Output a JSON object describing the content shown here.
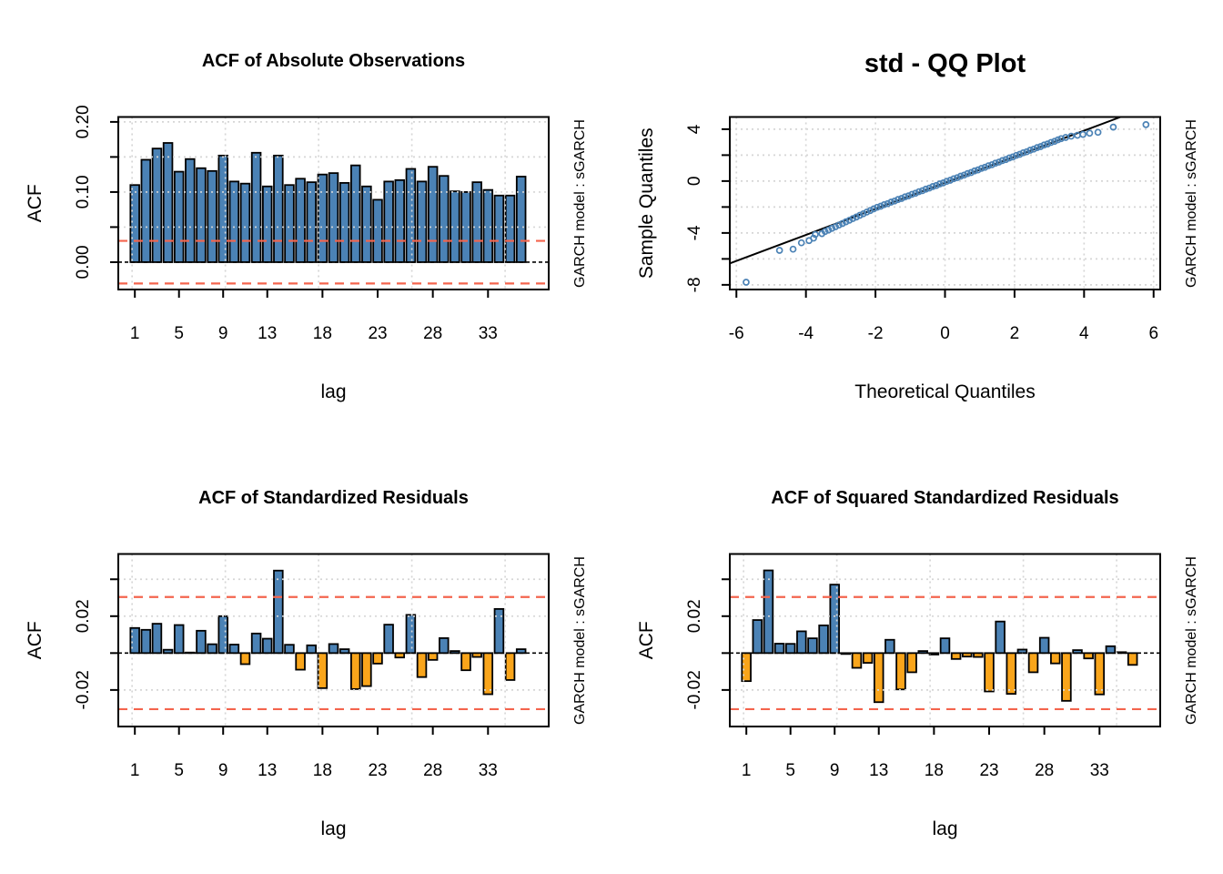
{
  "watermark": {
    "text": "GARCH model :  sGARCH",
    "color": "#C5C5C5"
  },
  "colors": {
    "background": "#FFFFFF",
    "bar_positive": "#4B82B5",
    "bar_negative": "#F9A51B",
    "bar_border": "#000000",
    "conf_line": "#F4654E",
    "grid": "#D6D6D6",
    "zero_line": "#000000",
    "qq_point": "#4B82B5",
    "qq_line": "#000000",
    "axis": "#000000"
  },
  "chart_data": [
    {
      "id": "acf-abs",
      "type": "bar",
      "panel": "top-left",
      "title": "ACF of Absolute Observations",
      "xlabel": "lag",
      "ylabel": "ACF",
      "xlim": [
        -0.5,
        38.5
      ],
      "ylim": [
        -0.039,
        0.207
      ],
      "x_ticks": [
        {
          "v": 1,
          "label": "1"
        },
        {
          "v": 5,
          "label": "5"
        },
        {
          "v": 9,
          "label": "9"
        },
        {
          "v": 13,
          "label": "13"
        },
        {
          "v": 18,
          "label": "18"
        },
        {
          "v": 23,
          "label": "23"
        },
        {
          "v": 28,
          "label": "28"
        },
        {
          "v": 33,
          "label": "33"
        }
      ],
      "y_ticks": [
        {
          "v": 0,
          "label": "0.00"
        },
        {
          "v": 0.05,
          "label": ""
        },
        {
          "v": 0.1,
          "label": "0.10"
        },
        {
          "v": 0.15,
          "label": ""
        },
        {
          "v": 0.2,
          "label": "0.20"
        }
      ],
      "y_grid": [
        0.05,
        0.1,
        0.15,
        0.2
      ],
      "x_grid": [
        0.75,
        9.2,
        17.65,
        26.1,
        34.55
      ],
      "conf_level": 0.0304,
      "grid_on": true,
      "legend": "none",
      "lags": [
        1,
        2,
        3,
        4,
        5,
        6,
        7,
        8,
        9,
        10,
        11,
        12,
        13,
        14,
        15,
        16,
        17,
        18,
        19,
        20,
        21,
        22,
        23,
        24,
        25,
        26,
        27,
        28,
        29,
        30,
        31,
        32,
        33,
        34,
        35,
        36
      ],
      "values": [
        0.11,
        0.146,
        0.162,
        0.17,
        0.129,
        0.147,
        0.134,
        0.13,
        0.152,
        0.115,
        0.112,
        0.156,
        0.108,
        0.152,
        0.11,
        0.119,
        0.114,
        0.125,
        0.127,
        0.113,
        0.138,
        0.108,
        0.089,
        0.115,
        0.117,
        0.133,
        0.115,
        0.136,
        0.123,
        0.101,
        0.1,
        0.114,
        0.103,
        0.095,
        0.095,
        0.122
      ]
    },
    {
      "id": "qq",
      "type": "scatter",
      "panel": "top-right",
      "title": "std - QQ Plot",
      "xlabel": "Theoretical Quantiles",
      "ylabel": "Sample Quantiles",
      "xlim": [
        -6.19,
        6.19
      ],
      "ylim": [
        -8.36,
        4.94
      ],
      "x_ticks": [
        {
          "v": -6,
          "label": "-6"
        },
        {
          "v": -4,
          "label": "-4"
        },
        {
          "v": -2,
          "label": "-2"
        },
        {
          "v": 0,
          "label": "0"
        },
        {
          "v": 2,
          "label": "2"
        },
        {
          "v": 4,
          "label": "4"
        },
        {
          "v": 6,
          "label": "6"
        }
      ],
      "y_ticks": [
        {
          "v": 4,
          "label": "4"
        },
        {
          "v": 2,
          "label": ""
        },
        {
          "v": 0,
          "label": "0"
        },
        {
          "v": -2,
          "label": ""
        },
        {
          "v": -4,
          "label": "-4"
        },
        {
          "v": -6,
          "label": ""
        },
        {
          "v": -8,
          "label": "-8"
        }
      ],
      "grid_on": true,
      "legend": "none",
      "ref_line": {
        "x1": -6.19,
        "y1": -6.35,
        "x2": 5.05,
        "y2": 4.94
      },
      "points": [
        [
          -5.72,
          -7.8
        ],
        [
          -4.76,
          -5.34
        ],
        [
          -4.37,
          -5.25
        ],
        [
          -4.13,
          -4.76
        ],
        [
          -3.91,
          -4.59
        ],
        [
          -3.78,
          -4.4
        ],
        [
          -3.73,
          -4.12
        ],
        [
          -3.54,
          -4.05
        ],
        [
          -3.45,
          -3.89
        ],
        [
          -3.35,
          -3.77
        ],
        [
          -3.25,
          -3.64
        ],
        [
          -3.15,
          -3.52
        ],
        [
          -3.05,
          -3.39
        ],
        [
          -2.95,
          -3.27
        ],
        [
          -2.85,
          -3.14
        ],
        [
          -2.75,
          -3.02
        ],
        [
          -2.65,
          -2.89
        ],
        [
          -2.55,
          -2.77
        ],
        [
          -2.45,
          -2.64
        ],
        [
          -2.35,
          -2.52
        ],
        [
          -2.25,
          -2.39
        ],
        [
          -2.15,
          -2.27
        ],
        [
          -2.05,
          -2.14
        ],
        [
          -1.95,
          -2.02
        ],
        [
          -1.85,
          -1.94
        ],
        [
          -1.75,
          -1.82
        ],
        [
          -1.65,
          -1.74
        ],
        [
          -1.55,
          -1.62
        ],
        [
          -1.45,
          -1.54
        ],
        [
          -1.35,
          -1.42
        ],
        [
          -1.25,
          -1.34
        ],
        [
          -1.15,
          -1.22
        ],
        [
          -1.05,
          -1.14
        ],
        [
          -0.95,
          -1.02
        ],
        [
          -0.85,
          -0.94
        ],
        [
          -0.75,
          -0.82
        ],
        [
          -0.65,
          -0.74
        ],
        [
          -0.55,
          -0.62
        ],
        [
          -0.45,
          -0.54
        ],
        [
          -0.35,
          -0.42
        ],
        [
          -0.25,
          -0.34
        ],
        [
          -0.15,
          -0.22
        ],
        [
          -0.05,
          -0.14
        ],
        [
          0.05,
          -0.02
        ],
        [
          0.15,
          0.06
        ],
        [
          0.25,
          0.18
        ],
        [
          0.35,
          0.26
        ],
        [
          0.45,
          0.38
        ],
        [
          0.55,
          0.46
        ],
        [
          0.65,
          0.58
        ],
        [
          0.75,
          0.66
        ],
        [
          0.85,
          0.78
        ],
        [
          0.95,
          0.86
        ],
        [
          1.05,
          0.98
        ],
        [
          1.15,
          1.06
        ],
        [
          1.25,
          1.18
        ],
        [
          1.35,
          1.26
        ],
        [
          1.45,
          1.38
        ],
        [
          1.55,
          1.46
        ],
        [
          1.65,
          1.58
        ],
        [
          1.75,
          1.66
        ],
        [
          1.85,
          1.78
        ],
        [
          1.95,
          1.86
        ],
        [
          2.05,
          1.98
        ],
        [
          2.15,
          2.06
        ],
        [
          2.25,
          2.18
        ],
        [
          2.35,
          2.26
        ],
        [
          2.45,
          2.38
        ],
        [
          2.55,
          2.46
        ],
        [
          2.65,
          2.58
        ],
        [
          2.75,
          2.66
        ],
        [
          2.85,
          2.78
        ],
        [
          2.95,
          2.86
        ],
        [
          3.05,
          2.98
        ],
        [
          3.15,
          3.06
        ],
        [
          3.25,
          3.18
        ],
        [
          3.34,
          3.27
        ],
        [
          3.47,
          3.36
        ],
        [
          3.63,
          3.46
        ],
        [
          3.81,
          3.53
        ],
        [
          3.97,
          3.6
        ],
        [
          4.16,
          3.69
        ],
        [
          4.4,
          3.76
        ],
        [
          4.84,
          4.16
        ],
        [
          5.78,
          4.35
        ]
      ]
    },
    {
      "id": "acf-std",
      "type": "bar",
      "panel": "bottom-left",
      "title": "ACF of Standardized Residuals",
      "xlabel": "lag",
      "ylabel": "ACF",
      "xlim": [
        -0.5,
        38.5
      ],
      "ylim": [
        -0.0398,
        0.0537
      ],
      "x_ticks": [
        {
          "v": 1,
          "label": "1"
        },
        {
          "v": 5,
          "label": "5"
        },
        {
          "v": 9,
          "label": "9"
        },
        {
          "v": 13,
          "label": "13"
        },
        {
          "v": 18,
          "label": "18"
        },
        {
          "v": 23,
          "label": "23"
        },
        {
          "v": 28,
          "label": "28"
        },
        {
          "v": 33,
          "label": "33"
        }
      ],
      "y_ticks": [
        {
          "v": -0.02,
          "label": "-0.02"
        },
        {
          "v": 0,
          "label": ""
        },
        {
          "v": 0.02,
          "label": "0.02"
        },
        {
          "v": 0.04,
          "label": ""
        }
      ],
      "y_grid": [
        -0.02,
        0.02,
        0.04
      ],
      "x_grid": [
        0.75,
        9.2,
        17.65,
        26.1,
        34.55
      ],
      "conf_level": 0.0304,
      "grid_on": true,
      "legend": "none",
      "lags": [
        1,
        2,
        3,
        4,
        5,
        6,
        7,
        8,
        9,
        10,
        11,
        12,
        13,
        14,
        15,
        16,
        17,
        18,
        19,
        20,
        21,
        22,
        23,
        24,
        25,
        26,
        27,
        28,
        29,
        30,
        31,
        32,
        33,
        34,
        35,
        36
      ],
      "values": [
        0.0136,
        0.0126,
        0.0159,
        0.0018,
        0.0152,
        0.0003,
        0.0121,
        0.0048,
        0.02,
        0.0046,
        -0.006,
        0.0106,
        0.0078,
        0.0447,
        0.0045,
        -0.009,
        0.0042,
        -0.019,
        0.0049,
        0.0021,
        -0.0195,
        -0.0179,
        -0.0057,
        0.0154,
        -0.0024,
        0.0207,
        -0.013,
        -0.0037,
        0.0081,
        0.0011,
        -0.0093,
        -0.0021,
        -0.0223,
        0.0239,
        -0.0146,
        0.0021
      ]
    },
    {
      "id": "acf-sq",
      "type": "bar",
      "panel": "bottom-right",
      "title": "ACF of Squared Standardized Residuals",
      "xlabel": "lag",
      "ylabel": "ACF",
      "xlim": [
        -0.5,
        38.5
      ],
      "ylim": [
        -0.0398,
        0.0537
      ],
      "x_ticks": [
        {
          "v": 1,
          "label": "1"
        },
        {
          "v": 5,
          "label": "5"
        },
        {
          "v": 9,
          "label": "9"
        },
        {
          "v": 13,
          "label": "13"
        },
        {
          "v": 18,
          "label": "18"
        },
        {
          "v": 23,
          "label": "23"
        },
        {
          "v": 28,
          "label": "28"
        },
        {
          "v": 33,
          "label": "33"
        }
      ],
      "y_ticks": [
        {
          "v": -0.02,
          "label": "-0.02"
        },
        {
          "v": 0,
          "label": ""
        },
        {
          "v": 0.02,
          "label": "0.02"
        },
        {
          "v": 0.04,
          "label": ""
        }
      ],
      "y_grid": [
        -0.02,
        0.02,
        0.04
      ],
      "x_grid": [
        0.75,
        9.2,
        17.65,
        26.1,
        34.55
      ],
      "conf_level": 0.0304,
      "grid_on": true,
      "legend": "none",
      "lags": [
        1,
        2,
        3,
        4,
        5,
        6,
        7,
        8,
        9,
        10,
        11,
        12,
        13,
        14,
        15,
        16,
        17,
        18,
        19,
        20,
        21,
        22,
        23,
        24,
        25,
        26,
        27,
        28,
        29,
        30,
        31,
        32,
        33,
        34,
        35,
        36
      ],
      "values": [
        -0.0152,
        0.0179,
        0.0448,
        0.0051,
        0.005,
        0.0118,
        0.008,
        0.015,
        0.0371,
        -0.0005,
        -0.008,
        -0.0053,
        -0.0266,
        0.0072,
        -0.0197,
        -0.0104,
        0.0011,
        -0.0008,
        0.008,
        -0.0032,
        -0.0019,
        -0.0021,
        -0.0208,
        0.0171,
        -0.0221,
        0.0019,
        -0.0104,
        0.0083,
        -0.0056,
        -0.0259,
        0.0016,
        -0.0029,
        -0.0224,
        0.0037,
        0.0005,
        -0.0064
      ]
    }
  ]
}
